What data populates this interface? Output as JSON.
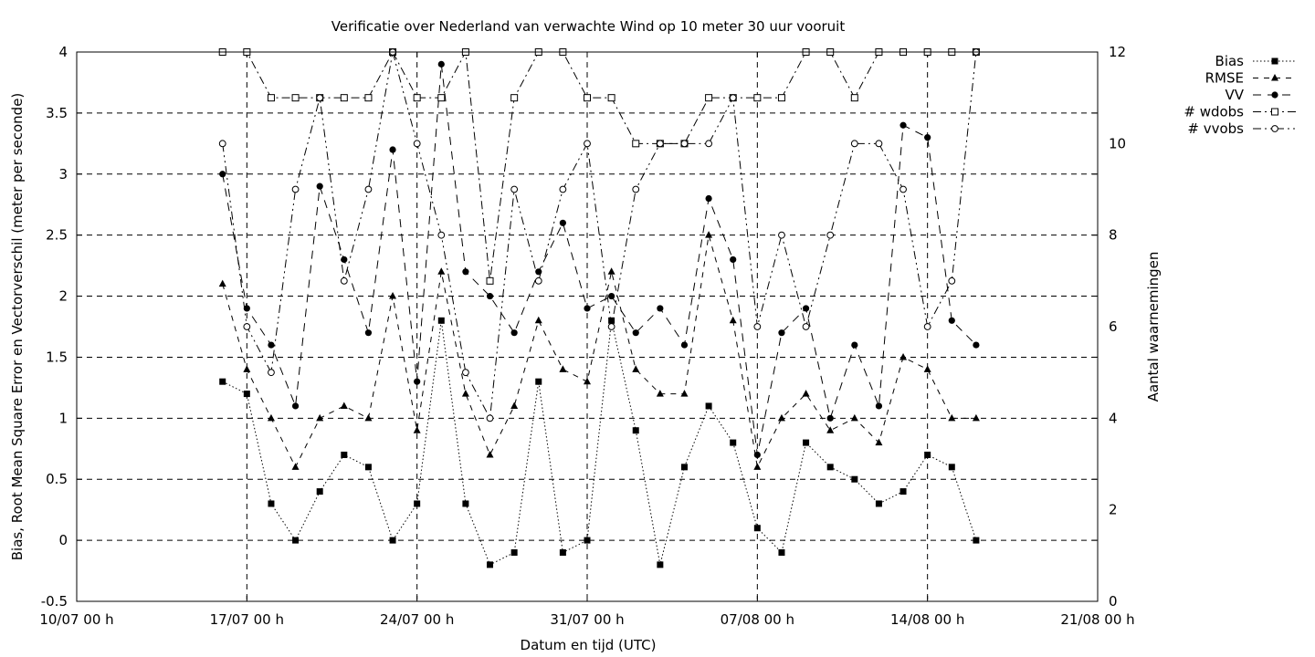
{
  "chart_data": {
    "type": "line",
    "title": "Verificatie over Nederland van verwachte Wind op 10 meter 30 uur vooruit",
    "xlabel": "Datum en tijd (UTC)",
    "ylabel": "Bias, Root Mean Square Error en Vectorverschil (meter per seconde)",
    "y2label": "Aantal waarnemingen",
    "xlim": [
      "2025-07-10",
      "2025-08-21"
    ],
    "ylim": [
      -0.5,
      4
    ],
    "y2lim": [
      0,
      12
    ],
    "grid": true,
    "legend_position": "outside-top-right",
    "x_ticks": [
      "10/07 00 h",
      "17/07 00 h",
      "24/07 00 h",
      "31/07 00 h",
      "07/08 00 h",
      "14/08 00 h",
      "21/08 00 h"
    ],
    "y_ticks": [
      "-0.5",
      "0",
      "0.5",
      "1",
      "1.5",
      "2",
      "2.5",
      "3",
      "3.5",
      "4"
    ],
    "y2_ticks": [
      "0",
      "2",
      "4",
      "6",
      "8",
      "10",
      "12"
    ],
    "x": [
      "16/07",
      "17/07",
      "18/07",
      "19/07",
      "20/07",
      "21/07",
      "22/07",
      "23/07",
      "24/07",
      "25/07",
      "26/07",
      "27/07",
      "28/07",
      "29/07",
      "30/07",
      "31/07",
      "01/08",
      "02/08",
      "03/08",
      "04/08",
      "05/08",
      "06/08",
      "07/08",
      "08/08",
      "09/08",
      "10/08",
      "11/08",
      "12/08",
      "13/08",
      "14/08",
      "15/08",
      "16/08"
    ],
    "series": [
      {
        "name": "Bias",
        "axis": "left",
        "marker": "square-filled",
        "dash": "dotted",
        "values": [
          1.3,
          1.2,
          0.3,
          0.0,
          0.4,
          0.7,
          0.6,
          0.0,
          0.3,
          1.8,
          0.3,
          -0.2,
          -0.1,
          1.3,
          -0.1,
          0.0,
          1.8,
          0.9,
          -0.2,
          0.6,
          1.1,
          0.8,
          0.1,
          -0.1,
          0.8,
          0.6,
          0.5,
          0.3,
          0.4,
          0.7,
          0.6,
          0.0
        ]
      },
      {
        "name": "RMSE",
        "axis": "left",
        "marker": "triangle-filled",
        "dash": "dashed",
        "values": [
          2.1,
          1.4,
          1.0,
          0.6,
          1.0,
          1.1,
          1.0,
          2.0,
          0.9,
          2.2,
          1.2,
          0.7,
          1.1,
          1.8,
          1.4,
          1.3,
          2.2,
          1.4,
          1.2,
          1.2,
          2.5,
          1.8,
          0.6,
          1.0,
          1.2,
          0.9,
          1.0,
          0.8,
          1.5,
          1.4,
          1.0,
          1.0
        ]
      },
      {
        "name": "VV",
        "axis": "left",
        "marker": "circle-filled",
        "dash": "longdash",
        "values": [
          3.0,
          1.9,
          1.6,
          1.1,
          2.9,
          2.3,
          1.7,
          3.2,
          1.3,
          3.9,
          2.2,
          2.0,
          1.7,
          2.2,
          2.6,
          1.9,
          2.0,
          1.7,
          1.9,
          1.6,
          2.8,
          2.3,
          0.7,
          1.7,
          1.9,
          1.0,
          1.6,
          1.1,
          3.4,
          3.3,
          1.8,
          1.6
        ]
      },
      {
        "name": "# wdobs",
        "axis": "right",
        "marker": "square-open",
        "dash": "dashdot",
        "values": [
          12,
          12,
          11,
          11,
          11,
          11,
          11,
          12,
          11,
          11,
          12,
          7,
          11,
          12,
          12,
          11,
          11,
          10,
          10,
          10,
          11,
          11,
          11,
          11,
          12,
          12,
          11,
          12,
          12,
          12,
          12,
          12
        ]
      },
      {
        "name": "# vvobs",
        "axis": "right",
        "marker": "circle-open",
        "dash": "dashdotdot",
        "values": [
          10,
          6,
          5,
          9,
          11,
          7,
          9,
          12,
          10,
          8,
          5,
          4,
          9,
          7,
          9,
          10,
          6,
          9,
          10,
          10,
          10,
          11,
          6,
          8,
          6,
          8,
          10,
          10,
          9,
          6,
          7,
          12
        ]
      }
    ]
  }
}
